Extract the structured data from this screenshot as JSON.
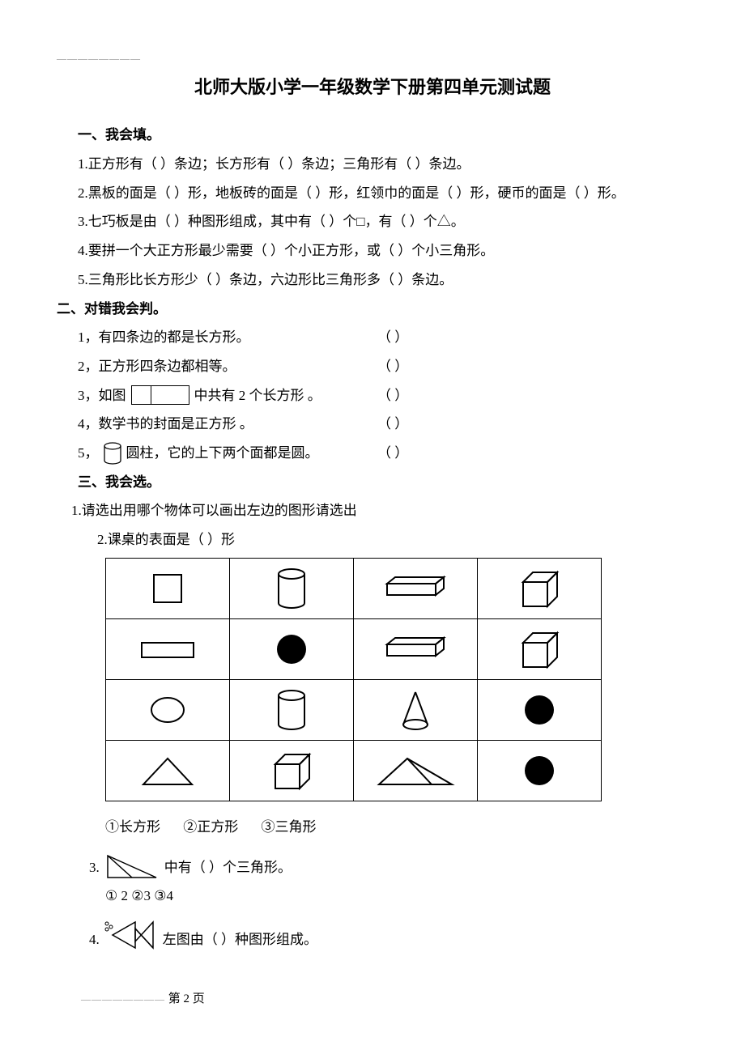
{
  "title": "北师大版小学一年级数学下册第四单元测试题",
  "sec1": {
    "head": "一、我会填。",
    "q1": "1.正方形有（   ）条边；长方形有（   ）条边；三角形有（   ）条边。",
    "q2": "2.黑板的面是（   ）形，地板砖的面是（   ）形，红领巾的面是（   ）形，硬币的面是（   ）形。",
    "q3": "3.七巧板是由（   ）种图形组成，其中有（   ）个□，有（   ）个△。",
    "q4": "4.要拼一个大正方形最少需要（   ）个小正方形，或（   ）个小三角形。",
    "q5": "5.三角形比长方形少（   ）条边，六边形比三角形多（   ）条边。"
  },
  "sec2": {
    "head": "二、对错我会判。",
    "items": [
      {
        "pre": "1，有四条边的都是长方形。",
        "mid": "",
        "post": ""
      },
      {
        "pre": "2，正方形四条边都相等。",
        "mid": "",
        "post": ""
      },
      {
        "pre": "3，如图",
        "mid": "rect",
        "post": "中共有 2 个长方形 。"
      },
      {
        "pre": "4，数学书的封面是正方形 。",
        "mid": "",
        "post": ""
      },
      {
        "pre": "5，",
        "mid": "cyl",
        "post": "圆柱，它的上下两个面都是圆。"
      }
    ],
    "paren": "（        ）"
  },
  "sec3": {
    "head": "三、我会选。",
    "q1": "1.请选出用哪个物体可以画出左边的图形请选出",
    "q2": "2.课桌的表面是（   ）形",
    "opts2": "①长方形      ②正方形        ③三角形",
    "q3a": "3.",
    "q3b": "中有（   ）个三角形。",
    "opts3": "① 2           ②3              ③4",
    "q4a": "4.",
    "q4b": "左图由（   ）种图形组成。"
  },
  "footer": {
    "dash": "————————",
    "page": "第 2 页"
  },
  "style": {
    "stroke": "#000000",
    "fill_black": "#000000",
    "fill_none": "none",
    "bg": "#ffffff"
  },
  "table": {
    "rows": [
      [
        "square",
        "cylinder",
        "cuboid-long",
        "cube"
      ],
      [
        "rect",
        "circle-black",
        "cuboid-long",
        "cube"
      ],
      [
        "ellipse",
        "cylinder",
        "cone",
        "circle-black"
      ],
      [
        "triangle",
        "cube",
        "triangle-split",
        "circle-black"
      ]
    ]
  }
}
